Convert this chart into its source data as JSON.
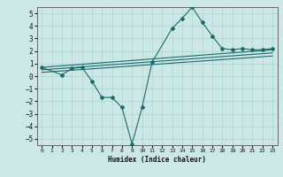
{
  "xlabel": "Humidex (Indice chaleur)",
  "xlim": [
    -0.5,
    23.5
  ],
  "ylim": [
    -5.5,
    5.5
  ],
  "xticks": [
    0,
    1,
    2,
    3,
    4,
    5,
    6,
    7,
    8,
    9,
    10,
    11,
    12,
    13,
    14,
    15,
    16,
    17,
    18,
    19,
    20,
    21,
    22,
    23
  ],
  "yticks": [
    -5,
    -4,
    -3,
    -2,
    -1,
    0,
    1,
    2,
    3,
    4,
    5
  ],
  "bg_color": "#cce8e6",
  "line_color": "#1a6b6b",
  "grid_color": "#aad4d0",
  "lines": [
    {
      "x": [
        0,
        2,
        3,
        4,
        5,
        6,
        7,
        8,
        9,
        10,
        11,
        13,
        14,
        15,
        16,
        17,
        18,
        19,
        20,
        21,
        22,
        23
      ],
      "y": [
        0.7,
        0.1,
        0.6,
        0.7,
        -0.4,
        -1.7,
        -1.7,
        -2.5,
        -5.4,
        -2.5,
        1.1,
        3.8,
        4.6,
        5.5,
        4.3,
        3.2,
        2.2,
        2.1,
        2.2,
        2.1,
        2.1,
        2.2
      ],
      "has_markers": true
    },
    {
      "x": [
        0,
        23
      ],
      "y": [
        0.7,
        2.1
      ],
      "has_markers": false
    },
    {
      "x": [
        0,
        23
      ],
      "y": [
        0.5,
        1.85
      ],
      "has_markers": false
    },
    {
      "x": [
        0,
        23
      ],
      "y": [
        0.3,
        1.6
      ],
      "has_markers": false
    }
  ]
}
